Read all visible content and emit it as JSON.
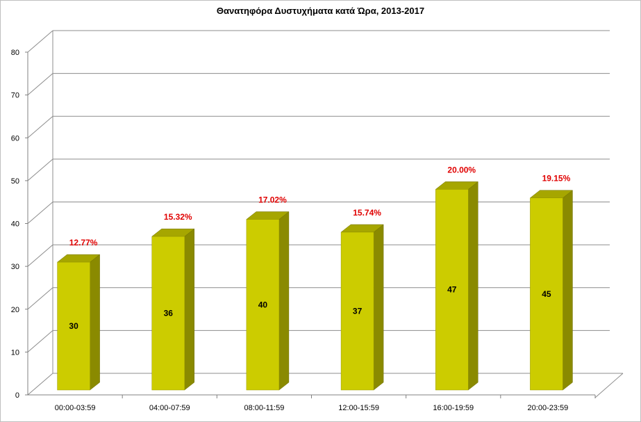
{
  "chart_data": {
    "type": "bar",
    "title": "Θανατηφόρα Δυστυχήματα κατά Ώρα, 2013-2017",
    "categories": [
      "00:00-03:59",
      "04:00-07:59",
      "08:00-11:59",
      "12:00-15:59",
      "16:00-19:59",
      "20:00-23:59"
    ],
    "values": [
      30,
      36,
      40,
      37,
      47,
      45
    ],
    "percent_labels": [
      "12.77%",
      "15.32%",
      "17.02%",
      "15.74%",
      "20.00%",
      "19.15%"
    ],
    "ylim": [
      0,
      80
    ],
    "yticks": [
      "0",
      "10",
      "20",
      "30",
      "40",
      "50",
      "60",
      "70",
      "80"
    ],
    "grid": true,
    "legend": "none",
    "style": "3d-column"
  },
  "colors": {
    "bar_front": "#cccc00",
    "bar_side": "#8a8a00",
    "bar_top": "#a6a600",
    "percent_label": "#e00000",
    "value_label": "#000000",
    "grid": "#8c8c8c"
  }
}
